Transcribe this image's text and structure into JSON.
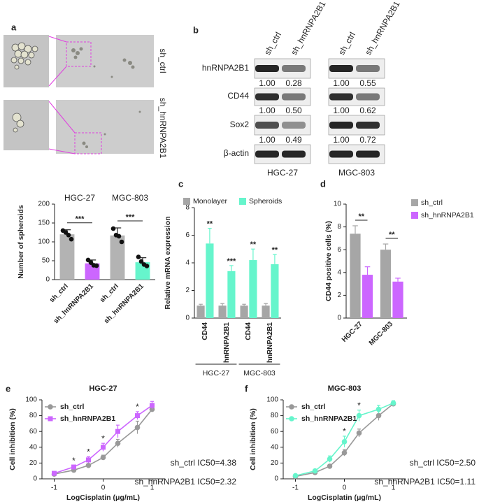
{
  "panel_labels": [
    "a",
    "b",
    "c",
    "d",
    "e",
    "f"
  ],
  "panel_a": {
    "rows": [
      "sh_ctrl",
      "sh_hnRNPA2B1"
    ]
  },
  "panel_b": {
    "lanes": [
      "sh_ctrl",
      "sh_hnRNPA2B1"
    ],
    "cell_lines": [
      "HGC-27",
      "MGC-803"
    ],
    "proteins": [
      "hnRNPA2B1",
      "CD44",
      "Sox2",
      "β-actin"
    ],
    "quantification": [
      [
        [
          "1.00",
          "0.28"
        ],
        [
          "1.00",
          "0.50"
        ],
        [
          "1.00",
          "0.49"
        ]
      ],
      [
        [
          "1.00",
          "0.55"
        ],
        [
          "1.00",
          "0.62"
        ],
        [
          "1.00",
          "0.72"
        ]
      ]
    ]
  },
  "chart_data": [
    {
      "type": "bar",
      "ylabel": "Number of spheroids",
      "groups": [
        "HGC-27",
        "MGC-803"
      ],
      "categories": [
        "sh_ctrl",
        "sh_hnRNPA2B1",
        "sh_ctrl",
        "sh_hnRNPA2B1"
      ],
      "values": [
        120,
        43,
        117,
        46
      ],
      "errors": [
        12,
        9,
        20,
        12
      ],
      "colors": [
        "#b3b3b3",
        "#cc66ff",
        "#b3b3b3",
        "#66f5cc"
      ],
      "points": [
        [
          130,
          125,
          118,
          107
        ],
        [
          52,
          45,
          38,
          37
        ],
        [
          135,
          118,
          115,
          100
        ],
        [
          60,
          48,
          40,
          36
        ]
      ],
      "significance": [
        "***",
        "***"
      ],
      "ylim": [
        0,
        200
      ],
      "yticks": [
        0,
        50,
        100,
        150,
        200
      ]
    },
    {
      "type": "bar",
      "ylabel": "Relative mRNA expression",
      "groups": [
        "HGC-27",
        "MGC-803"
      ],
      "categories": [
        "CD44",
        "hnRNPA2B1",
        "CD44",
        "hnRNPA2B1"
      ],
      "series": [
        {
          "name": "Monolayer",
          "color": "#a6a6a6",
          "values": [
            0.9,
            0.9,
            0.9,
            0.9
          ],
          "errors": [
            0.1,
            0.15,
            0.1,
            0.15
          ]
        },
        {
          "name": "Spheroids",
          "color": "#66f5cc",
          "values": [
            5.4,
            3.4,
            4.2,
            3.9
          ],
          "errors": [
            1.1,
            0.4,
            0.8,
            0.7
          ]
        }
      ],
      "significance": [
        "**",
        "***",
        "**",
        "**"
      ],
      "ylim": [
        0,
        8
      ],
      "yticks": [
        0,
        2,
        4,
        6,
        8
      ]
    },
    {
      "type": "bar",
      "ylabel": "CD44 positive cells (%)",
      "categories": [
        "HGC-27",
        "MGC-803"
      ],
      "series": [
        {
          "name": "sh_ctrl",
          "color": "#a6a6a6",
          "values": [
            7.4,
            6.0
          ],
          "errors": [
            0.7,
            0.5
          ]
        },
        {
          "name": "sh_hnRNPA2B1",
          "color": "#cc66ff",
          "values": [
            3.8,
            3.2
          ],
          "errors": [
            0.7,
            0.3
          ]
        }
      ],
      "significance": [
        "**",
        "**"
      ],
      "ylim": [
        0,
        10
      ],
      "yticks": [
        0,
        2,
        4,
        6,
        8,
        10
      ]
    },
    {
      "type": "line",
      "title": "HGC-27",
      "xlabel": "LogCisplatin (μg/mL)",
      "ylabel": "Cell inhibition (%)",
      "x": [
        -1,
        -0.6,
        -0.3,
        0,
        0.3,
        0.7,
        1
      ],
      "series": [
        {
          "name": "sh_ctrl",
          "color": "#999999",
          "marker": "circle",
          "values": [
            6,
            11,
            17,
            27,
            45,
            65,
            88
          ],
          "errors": [
            1,
            1,
            2,
            3,
            5,
            8,
            3
          ]
        },
        {
          "name": "sh_hnRNPA2B1",
          "color": "#cc66ff",
          "marker": "square",
          "values": [
            7,
            15,
            24,
            40,
            60,
            80,
            93
          ],
          "errors": [
            1,
            2,
            4,
            5,
            8,
            5,
            5
          ]
        }
      ],
      "significance": [
        null,
        "*",
        "*",
        "*",
        null,
        "*",
        null
      ],
      "annotations": [
        "sh_ctrl IC50=4.38",
        "sh_hnRNPA2B1 IC50=2.32"
      ],
      "xlim": [
        -1.25,
        1.25
      ],
      "xticks": [
        -1,
        0,
        1
      ],
      "ylim": [
        0,
        100
      ],
      "yticks": [
        0,
        20,
        40,
        60,
        80,
        100
      ]
    },
    {
      "type": "line",
      "title": "MGC-803",
      "xlabel": "LogCisplatin (μg/mL)",
      "ylabel": "Cell inhibition (%)",
      "x": [
        -1,
        -0.6,
        -0.3,
        0,
        0.3,
        0.7,
        1
      ],
      "series": [
        {
          "name": "sh_ctrl",
          "color": "#999999",
          "marker": "circle",
          "values": [
            3,
            8,
            16,
            33,
            58,
            80,
            95
          ],
          "errors": [
            1,
            1,
            2,
            4,
            5,
            6,
            2
          ]
        },
        {
          "name": "sh_hnRNPA2B1",
          "color": "#66f5cc",
          "marker": "circle",
          "values": [
            4,
            10,
            25,
            47,
            80,
            88,
            96
          ],
          "errors": [
            1,
            1,
            4,
            7,
            7,
            5,
            3
          ]
        }
      ],
      "significance": [
        null,
        null,
        null,
        "*",
        "*",
        null,
        null
      ],
      "annotations": [
        "sh_ctrl IC50=2.50",
        "sh_hnRNPA2B1 IC50=1.11"
      ],
      "xlim": [
        -1.25,
        1.25
      ],
      "xticks": [
        -1,
        0,
        1
      ],
      "ylim": [
        0,
        100
      ],
      "yticks": [
        0,
        20,
        40,
        60,
        80,
        100
      ]
    }
  ]
}
